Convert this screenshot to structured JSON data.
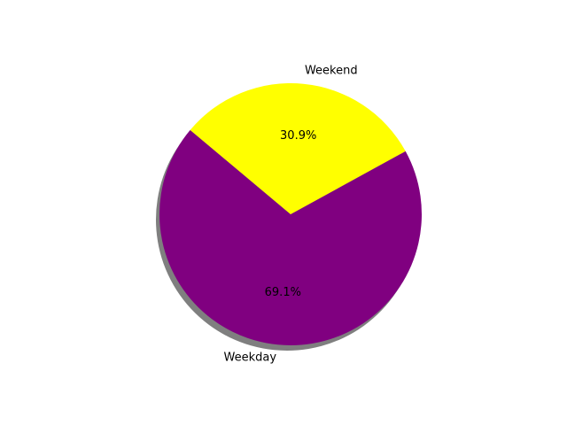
{
  "chart_data": {
    "type": "pie",
    "title": "",
    "categories": [
      "Weekday",
      "Weekend"
    ],
    "values": [
      69.1,
      30.9
    ],
    "labels": [
      "Weekday",
      "Weekend"
    ],
    "autopct_labels": [
      "69.1%",
      "30.9%"
    ],
    "colors": [
      "#800080",
      "#ffff00"
    ],
    "shadow": true,
    "legend": "none"
  }
}
